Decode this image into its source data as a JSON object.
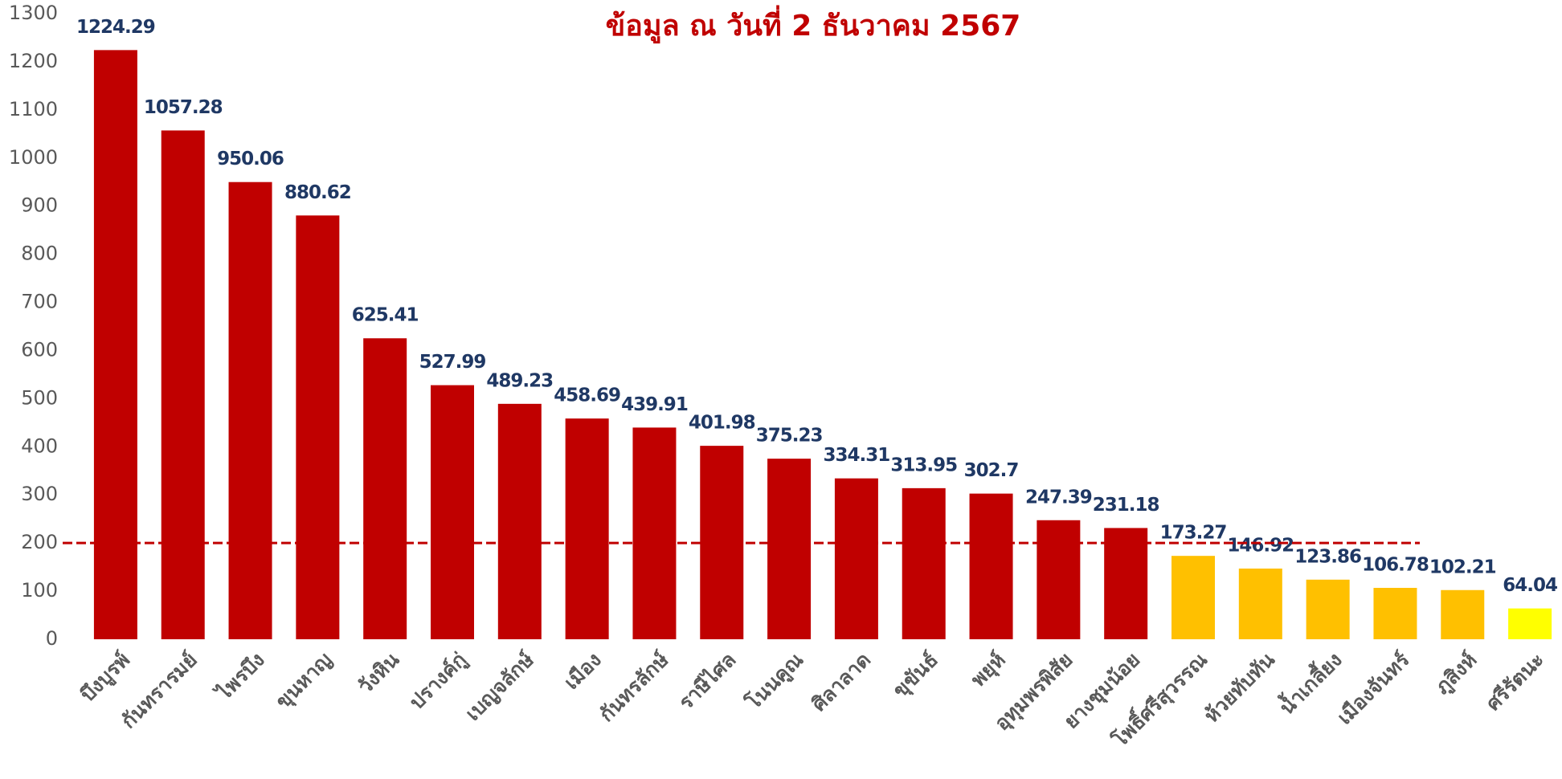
{
  "chart_data": {
    "type": "bar",
    "title": "ข้อมูล ณ วันที่ 2 ธันวาคม  2567",
    "categories": [
      "บึงบูรพ์",
      "กันทรารมย์",
      "ไพรบึง",
      "ขุนหาญ",
      "วังหิน",
      "ปรางค์กู่",
      "เบญจลักษ์",
      "เมือง",
      "กันทรลักษ์",
      "ราษีไศล",
      "โนนคูณ",
      "ศิลาลาด",
      "ขุขันธ์",
      "พยุห์",
      "อุทุมพรพิสัย",
      "ยางชุมน้อย",
      "โพธิ์ศรีสุวรรณ",
      "ห้วยทับทัน",
      "น้ำเกลี้ยง",
      "เมืองจันทร์",
      "ภูสิงห์",
      "ศรีรัตนะ"
    ],
    "values": [
      1224.29,
      1057.28,
      950.06,
      880.62,
      625.41,
      527.99,
      489.23,
      458.69,
      439.91,
      401.98,
      375.23,
      334.31,
      313.95,
      302.7,
      247.39,
      231.18,
      173.27,
      146.92,
      123.86,
      106.78,
      102.21,
      64.04
    ],
    "colors": [
      "#c00000",
      "#c00000",
      "#c00000",
      "#c00000",
      "#c00000",
      "#c00000",
      "#c00000",
      "#c00000",
      "#c00000",
      "#c00000",
      "#c00000",
      "#c00000",
      "#c00000",
      "#c00000",
      "#c00000",
      "#c00000",
      "#ffc000",
      "#ffc000",
      "#ffc000",
      "#ffc000",
      "#ffc000",
      "#ffff00"
    ],
    "reference_line": 200,
    "ylim": [
      0,
      1300
    ],
    "yticks": [
      0,
      100,
      200,
      300,
      400,
      500,
      600,
      700,
      800,
      900,
      1000,
      1100,
      1200,
      1300
    ],
    "grid": false
  }
}
